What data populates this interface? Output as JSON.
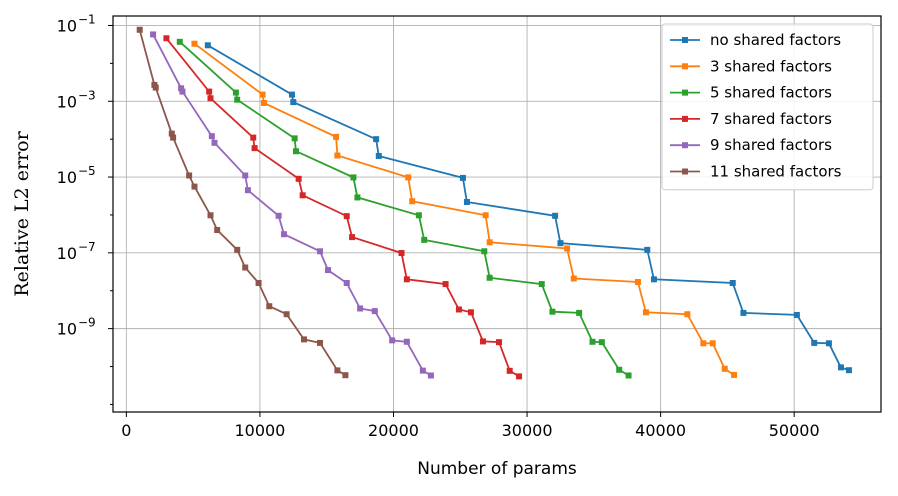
{
  "chart_data": {
    "type": "line",
    "title": "",
    "xlabel": "Number of params",
    "ylabel": "Relative L2 error",
    "xscale": "linear",
    "yscale": "log",
    "xlim": [
      -1000,
      56500
    ],
    "ylim_exp": [
      -11.2,
      -0.75
    ],
    "xticks": [
      0,
      10000,
      20000,
      30000,
      40000,
      50000
    ],
    "xtick_labels": [
      "0",
      "10000",
      "20000",
      "30000",
      "40000",
      "50000"
    ],
    "yticks_exp": [
      -1,
      -3,
      -5,
      -7,
      -9
    ],
    "ytick_labels": [
      {
        "base": "10",
        "exp": "−1"
      },
      {
        "base": "10",
        "exp": "−3"
      },
      {
        "base": "10",
        "exp": "−5"
      },
      {
        "base": "10",
        "exp": "−7"
      },
      {
        "base": "10",
        "exp": "−9"
      }
    ],
    "grid": true,
    "legend_position": "top-right",
    "series": [
      {
        "name": "no shared factors",
        "color": "#1f77b4",
        "x": [
          6100,
          12400,
          12500,
          18700,
          18900,
          25200,
          25500,
          32100,
          32500,
          39000,
          39500,
          45400,
          46200,
          50200,
          51500,
          52600,
          53500,
          54100
        ],
        "y": [
          0.03,
          0.0015,
          0.00095,
          0.0001,
          3.6e-05,
          9.5e-06,
          2.2e-06,
          9.5e-07,
          1.8e-07,
          1.2e-07,
          2e-08,
          1.6e-08,
          2.6e-09,
          2.3e-09,
          4.2e-10,
          4.1e-10,
          9.5e-11,
          8e-11
        ]
      },
      {
        "name": "3 shared factors",
        "color": "#ff7f0e",
        "x": [
          5100,
          10200,
          10300,
          15700,
          15800,
          21100,
          21400,
          26900,
          27200,
          33000,
          33500,
          38300,
          38900,
          42000,
          43200,
          43900,
          44800,
          45500
        ],
        "y": [
          0.033,
          0.0015,
          0.0009,
          0.000115,
          3.7e-05,
          9.8e-06,
          2.3e-06,
          9.8e-07,
          1.9e-07,
          1.3e-07,
          2.1e-08,
          1.7e-08,
          2.7e-09,
          2.4e-09,
          4.1e-10,
          4.1e-10,
          8.7e-11,
          6e-11
        ]
      },
      {
        "name": "5 shared factors",
        "color": "#2ca02c",
        "x": [
          4000,
          8200,
          8300,
          12600,
          12700,
          17000,
          17300,
          21900,
          22300,
          26800,
          27200,
          31100,
          31900,
          33900,
          34900,
          35600,
          36900,
          37600
        ],
        "y": [
          0.037,
          0.0017,
          0.0011,
          0.000105,
          4.8e-05,
          9.8e-06,
          2.9e-06,
          9.8e-07,
          2.2e-07,
          1.1e-07,
          2.2e-08,
          1.5e-08,
          2.8e-09,
          2.6e-09,
          4.5e-10,
          4.4e-10,
          8.2e-11,
          5.8e-11
        ]
      },
      {
        "name": "7 shared factors",
        "color": "#d62728",
        "x": [
          3000,
          6200,
          6300,
          9500,
          9600,
          12900,
          13200,
          16500,
          16900,
          20600,
          21000,
          23900,
          24900,
          25800,
          26700,
          27900,
          28700,
          29400
        ],
        "y": [
          0.046,
          0.0018,
          0.0012,
          0.00011,
          5.8e-05,
          9e-06,
          3.3e-06,
          9.3e-07,
          2.6e-07,
          9.9e-08,
          2e-08,
          1.5e-08,
          3.2e-09,
          2.7e-09,
          4.6e-10,
          4.4e-10,
          7.7e-11,
          5.5e-11
        ]
      },
      {
        "name": "9 shared factors",
        "color": "#9467bd",
        "x": [
          2000,
          4100,
          4200,
          6400,
          6600,
          8900,
          9100,
          11400,
          11800,
          14500,
          15100,
          16500,
          17500,
          18600,
          19900,
          21000,
          22200,
          22800
        ],
        "y": [
          0.058,
          0.0022,
          0.0018,
          0.00012,
          8e-05,
          1.1e-05,
          4.5e-06,
          9.5e-07,
          3.1e-07,
          1.1e-07,
          3.5e-08,
          1.6e-08,
          3.4e-09,
          2.9e-09,
          4.9e-10,
          4.5e-10,
          7.8e-11,
          5.8e-11
        ]
      },
      {
        "name": "11 shared factors",
        "color": "#8c564b",
        "x": [
          1000,
          2100,
          2200,
          3400,
          3500,
          4700,
          5100,
          6300,
          6800,
          8300,
          8900,
          9900,
          10700,
          12000,
          13300,
          14500,
          15800,
          16400
        ],
        "y": [
          0.077,
          0.0027,
          0.0023,
          0.00014,
          0.00011,
          1.1e-05,
          5.6e-06,
          9.8e-07,
          4e-07,
          1.2e-07,
          4.1e-08,
          1.6e-08,
          3.9e-09,
          2.4e-09,
          5.2e-10,
          4.2e-10,
          7.9e-11,
          5.9e-11
        ]
      }
    ]
  }
}
